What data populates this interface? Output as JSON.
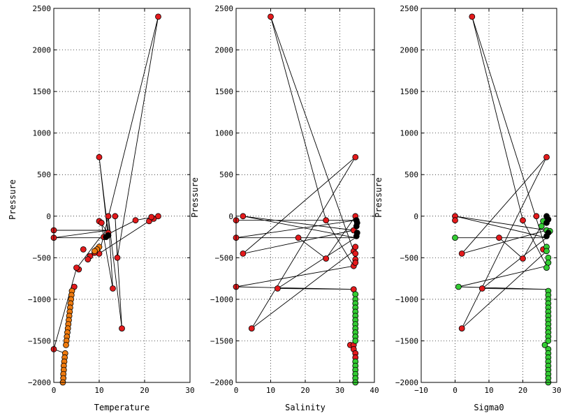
{
  "chart_data": [
    {
      "type": "scatter",
      "xlabel": "Temperature",
      "ylabel": "Pressure",
      "xlim": [
        0,
        30
      ],
      "ylim": [
        -2000,
        2500
      ],
      "xticks": [
        "0",
        "10",
        "20",
        "30"
      ],
      "yticks": [
        "−2000",
        "−1500",
        "−1000",
        "−500",
        "0",
        "500",
        "1000",
        "1500",
        "2000",
        "2500"
      ],
      "grid": true,
      "line": [
        [
          0,
          -170
        ],
        [
          12,
          -170
        ],
        [
          0,
          -260
        ],
        [
          12,
          -260
        ],
        [
          10,
          710
        ],
        [
          12,
          -200
        ],
        [
          10,
          -60
        ],
        [
          10.5,
          -80
        ],
        [
          11,
          -250
        ],
        [
          13,
          -870
        ],
        [
          12,
          0
        ],
        [
          15,
          -1350
        ],
        [
          13.5,
          0
        ],
        [
          14,
          -500
        ],
        [
          23,
          2400
        ],
        [
          10,
          -450
        ],
        [
          21,
          -60
        ],
        [
          22,
          -30
        ],
        [
          23,
          0
        ],
        [
          18,
          -50
        ],
        [
          10,
          -270
        ],
        [
          5,
          -630
        ],
        [
          0,
          -1600
        ],
        [
          2.5,
          -1650
        ],
        [
          2.3,
          -2000
        ]
      ],
      "series": [
        {
          "color": "#e41a1c",
          "points": [
            [
              0,
              -170
            ],
            [
              0,
              -260
            ],
            [
              10,
              710
            ],
            [
              10,
              -60
            ],
            [
              10.5,
              -80
            ],
            [
              12,
              0
            ],
            [
              13.5,
              0
            ],
            [
              13,
              -870
            ],
            [
              14,
              -500
            ],
            [
              15,
              -1350
            ],
            [
              23,
              2400
            ],
            [
              21,
              -60
            ],
            [
              22,
              -30
            ],
            [
              23,
              0
            ],
            [
              21.5,
              -10
            ],
            [
              18,
              -50
            ],
            [
              12,
              -200
            ],
            [
              11,
              -250
            ],
            [
              10,
              -450
            ],
            [
              9,
              -440
            ],
            [
              8,
              -480
            ],
            [
              7.5,
              -520
            ],
            [
              6.5,
              -400
            ],
            [
              5.5,
              -640
            ],
            [
              5,
              -620
            ],
            [
              4.5,
              -850
            ],
            [
              0,
              -1600
            ]
          ]
        },
        {
          "color": "#ee7a0e",
          "points": [
            [
              10,
              -370
            ],
            [
              9.5,
              -400
            ],
            [
              9,
              -420
            ],
            [
              4,
              -900
            ],
            [
              3.9,
              -950
            ],
            [
              3.8,
              -1000
            ],
            [
              3.7,
              -1050
            ],
            [
              3.6,
              -1100
            ],
            [
              3.5,
              -1150
            ],
            [
              3.4,
              -1200
            ],
            [
              3.3,
              -1250
            ],
            [
              3.2,
              -1300
            ],
            [
              3.1,
              -1350
            ],
            [
              3,
              -1400
            ],
            [
              2.9,
              -1450
            ],
            [
              2.8,
              -1500
            ],
            [
              2.7,
              -1550
            ],
            [
              2.5,
              -1650
            ],
            [
              2.4,
              -1700
            ],
            [
              2.3,
              -1750
            ],
            [
              2.2,
              -1800
            ],
            [
              2.2,
              -1850
            ],
            [
              2.1,
              -1900
            ],
            [
              2.1,
              -1950
            ],
            [
              2,
              -2000
            ]
          ]
        },
        {
          "color": "#000000",
          "points": [
            [
              12,
              -230
            ],
            [
              11.5,
              -250
            ]
          ]
        }
      ]
    },
    {
      "type": "scatter",
      "xlabel": "Salinity",
      "ylabel": "Pressure",
      "xlim": [
        0,
        40
      ],
      "ylim": [
        -2000,
        2500
      ],
      "xticks": [
        "0",
        "10",
        "20",
        "30",
        "40"
      ],
      "yticks": [
        "−2000",
        "−1500",
        "−1000",
        "−500",
        "0",
        "500",
        "1000",
        "1500",
        "2000",
        "2500"
      ],
      "grid": true,
      "line": [
        [
          0,
          -50
        ],
        [
          34.5,
          -50
        ],
        [
          0,
          -260
        ],
        [
          34.5,
          -260
        ],
        [
          2,
          0
        ],
        [
          34,
          -170
        ],
        [
          2,
          -450
        ],
        [
          34.5,
          710
        ],
        [
          4.5,
          -1350
        ],
        [
          34,
          -420
        ],
        [
          10,
          2400
        ],
        [
          26,
          -50
        ],
        [
          34,
          -600
        ],
        [
          0,
          -850
        ],
        [
          34,
          -880
        ],
        [
          12,
          -870
        ],
        [
          34.5,
          -260
        ],
        [
          18,
          -260
        ],
        [
          26,
          -510
        ],
        [
          34.5,
          0
        ]
      ],
      "series": [
        {
          "color": "#e41a1c",
          "points": [
            [
              0,
              -50
            ],
            [
              0,
              -260
            ],
            [
              0,
              -850
            ],
            [
              2,
              0
            ],
            [
              2,
              -450
            ],
            [
              4.5,
              -1350
            ],
            [
              10,
              2400
            ],
            [
              12,
              -870
            ],
            [
              18,
              -260
            ],
            [
              26,
              -50
            ],
            [
              26,
              -510
            ],
            [
              34.5,
              710
            ],
            [
              34.5,
              0
            ],
            [
              34,
              -170
            ],
            [
              34,
              -420
            ],
            [
              34,
              -600
            ],
            [
              34.5,
              -370
            ],
            [
              34.5,
              -450
            ],
            [
              34.5,
              -520
            ],
            [
              34.5,
              -560
            ],
            [
              34,
              -880
            ],
            [
              33,
              -1550
            ],
            [
              34,
              -1550
            ],
            [
              34,
              -1600
            ],
            [
              34.5,
              -1650
            ],
            [
              34.5,
              -1700
            ]
          ]
        },
        {
          "color": "#33cc33",
          "points": [
            [
              34.5,
              -940
            ],
            [
              34.5,
              -1000
            ],
            [
              34.5,
              -1050
            ],
            [
              34.5,
              -1100
            ],
            [
              34.5,
              -1150
            ],
            [
              34.5,
              -1200
            ],
            [
              34.5,
              -1250
            ],
            [
              34.5,
              -1300
            ],
            [
              34.5,
              -1350
            ],
            [
              34.5,
              -1400
            ],
            [
              34.5,
              -1450
            ],
            [
              34.5,
              -1500
            ],
            [
              34.5,
              -1750
            ],
            [
              34.5,
              -1800
            ],
            [
              34.5,
              -1850
            ],
            [
              34.5,
              -1900
            ],
            [
              34.5,
              -1950
            ],
            [
              34.5,
              -2000
            ]
          ]
        },
        {
          "color": "#000000",
          "points": [
            [
              34.8,
              -50
            ],
            [
              35,
              -80
            ],
            [
              34.8,
              -120
            ],
            [
              35,
              -200
            ],
            [
              34.8,
              -240
            ]
          ]
        }
      ]
    },
    {
      "type": "scatter",
      "xlabel": "Sigma0",
      "ylabel": "Pressure",
      "xlim": [
        -10,
        30
      ],
      "ylim": [
        -2000,
        2500
      ],
      "xticks": [
        "−10",
        "0",
        "10",
        "20",
        "30"
      ],
      "yticks": [
        "−2000",
        "−1500",
        "−1000",
        "−500",
        "0",
        "500",
        "1000",
        "1500",
        "2000",
        "2500"
      ],
      "grid": true,
      "line": [
        [
          0,
          -260
        ],
        [
          27,
          -260
        ],
        [
          0,
          0
        ],
        [
          27,
          -170
        ],
        [
          2,
          -450
        ],
        [
          27,
          710
        ],
        [
          2,
          -1350
        ],
        [
          27,
          -420
        ],
        [
          5,
          2400
        ],
        [
          20,
          -50
        ],
        [
          27,
          -600
        ],
        [
          1,
          -850
        ],
        [
          27,
          -880
        ],
        [
          8,
          -870
        ],
        [
          27,
          -260
        ],
        [
          13,
          -260
        ],
        [
          20,
          -510
        ],
        [
          27,
          0
        ]
      ],
      "series": [
        {
          "color": "#e41a1c",
          "points": [
            [
              0,
              0
            ],
            [
              0,
              -50
            ],
            [
              2,
              -450
            ],
            [
              2,
              -1350
            ],
            [
              5,
              2400
            ],
            [
              8,
              -870
            ],
            [
              13,
              -260
            ],
            [
              20,
              -50
            ],
            [
              20,
              -510
            ],
            [
              27,
              710
            ],
            [
              24,
              0
            ],
            [
              26,
              -400
            ],
            [
              27,
              -170
            ]
          ]
        },
        {
          "color": "#33cc33",
          "points": [
            [
              0,
              -260
            ],
            [
              1,
              -850
            ],
            [
              26,
              -60
            ],
            [
              25.5,
              -120
            ],
            [
              27,
              -170
            ],
            [
              28,
              -180
            ],
            [
              27,
              -370
            ],
            [
              27,
              -420
            ],
            [
              27.5,
              -500
            ],
            [
              27.5,
              -560
            ],
            [
              27,
              -620
            ],
            [
              27.5,
              -900
            ],
            [
              27.5,
              -950
            ],
            [
              27.5,
              -1000
            ],
            [
              27.5,
              -1050
            ],
            [
              27.5,
              -1100
            ],
            [
              27.5,
              -1150
            ],
            [
              27.5,
              -1200
            ],
            [
              27.5,
              -1250
            ],
            [
              27.5,
              -1300
            ],
            [
              27.5,
              -1350
            ],
            [
              27.5,
              -1400
            ],
            [
              27.5,
              -1450
            ],
            [
              27.5,
              -1500
            ],
            [
              26.5,
              -1550
            ],
            [
              27.5,
              -1600
            ],
            [
              27.5,
              -1650
            ],
            [
              27.5,
              -1700
            ],
            [
              27.5,
              -1750
            ],
            [
              27.5,
              -1800
            ],
            [
              27.5,
              -1850
            ],
            [
              27.5,
              -1900
            ],
            [
              27.5,
              -1950
            ],
            [
              27.5,
              -2000
            ]
          ]
        },
        {
          "color": "#000000",
          "points": [
            [
              27,
              0
            ],
            [
              27.5,
              -40
            ],
            [
              27,
              -80
            ],
            [
              27.5,
              -200
            ],
            [
              27,
              -240
            ]
          ]
        }
      ]
    }
  ]
}
